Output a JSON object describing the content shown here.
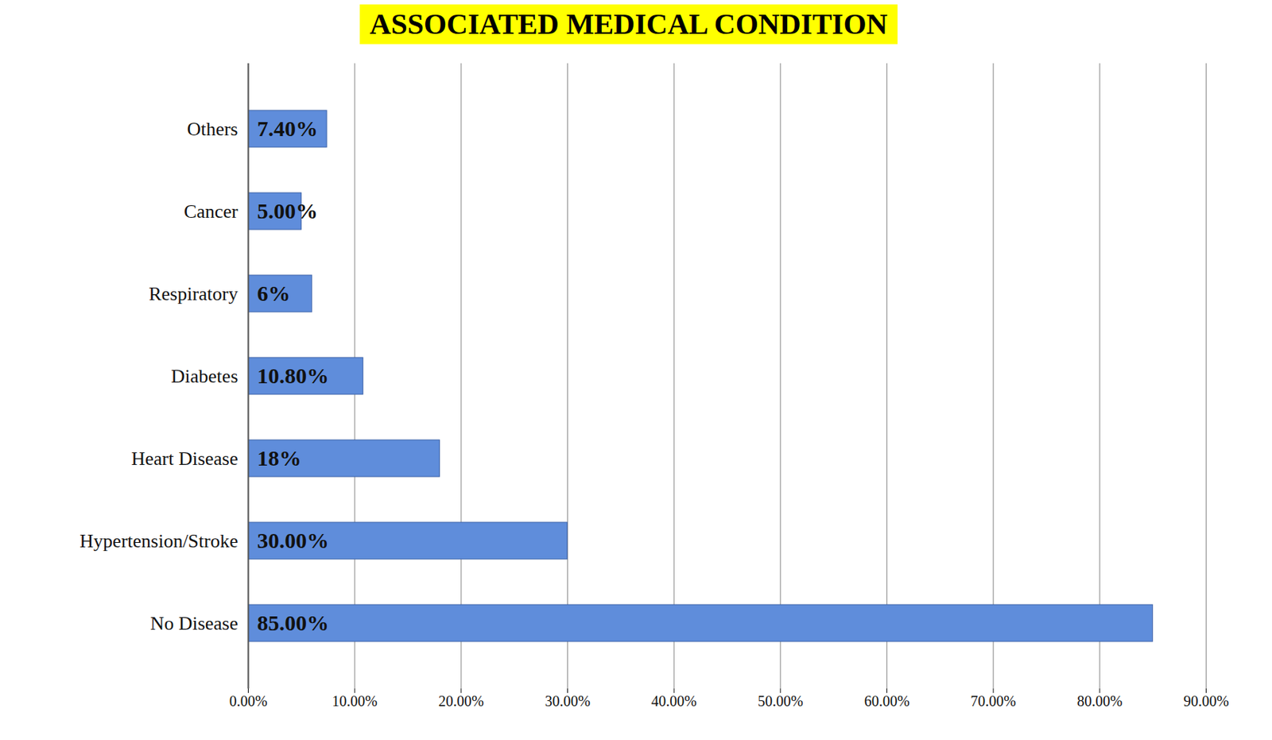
{
  "chart_data": {
    "type": "bar",
    "orientation": "horizontal",
    "title": "ASSOCIATED MEDICAL CONDITION",
    "categories": [
      "Others",
      "Cancer",
      "Respiratory",
      "Diabetes",
      "Heart Disease",
      "Hypertension/Stroke",
      "No Disease"
    ],
    "values": [
      7.4,
      5,
      6,
      10.8,
      18,
      30,
      85
    ],
    "value_labels": [
      "7.40%",
      "5.00%",
      "6%",
      "10.80%",
      "18%",
      "30.00%",
      "85.00%"
    ],
    "color": "#5f8ddb",
    "xlim": [
      0,
      90
    ],
    "xticks": [
      {
        "value": 0,
        "label": "0.00%"
      },
      {
        "value": 10,
        "label": "10.00%"
      },
      {
        "value": 20,
        "label": "20.00%"
      },
      {
        "value": 30,
        "label": "30.00%"
      },
      {
        "value": 40,
        "label": "40.00%"
      },
      {
        "value": 50,
        "label": "50.00%"
      },
      {
        "value": 60,
        "label": "60.00%"
      },
      {
        "value": 70,
        "label": "70.00%"
      },
      {
        "value": 80,
        "label": "80.00%"
      },
      {
        "value": 90,
        "label": "90.00%"
      }
    ],
    "grid": true,
    "data_labels": true
  }
}
